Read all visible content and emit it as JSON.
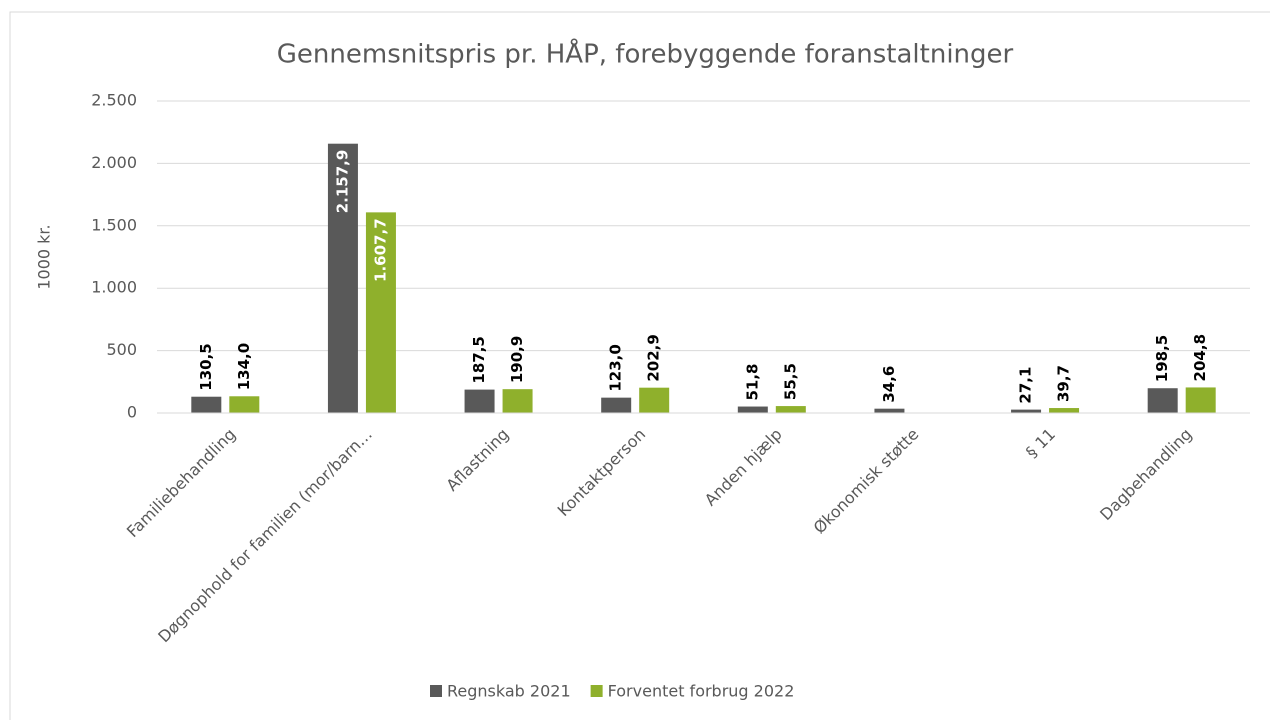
{
  "chart_data": {
    "type": "bar",
    "title": "Gennemsnitspris pr. HÅP, forebyggende foranstaltninger",
    "y_label": "1000 kr.",
    "categories": [
      "Familiebehandling",
      "Døgnophold for familien (mor/barn…",
      "Aflastning",
      "Kontaktperson",
      "Anden hjælp",
      "Økonomisk støtte",
      "§ 11",
      "Dagbehandling"
    ],
    "series": [
      {
        "name": "Regnskab 2021",
        "color": "#595959",
        "values": [
          130.5,
          2157.9,
          187.5,
          123.0,
          51.8,
          34.6,
          27.1,
          198.5
        ],
        "value_labels": [
          "130,5",
          "2.157,9",
          "187,5",
          "123,0",
          "51,8",
          "34,6",
          "27,1",
          "198,5"
        ]
      },
      {
        "name": "Forventet forbrug 2022",
        "color": "#8fb02c",
        "values": [
          134.0,
          1607.7,
          190.9,
          202.9,
          55.5,
          null,
          39.7,
          204.8
        ],
        "value_labels": [
          "134,0",
          "1.607,7",
          "190,9",
          "202,9",
          "55,5",
          null,
          "39,7",
          "204,8"
        ]
      }
    ],
    "ylim": [
      0,
      2500
    ],
    "yticks": [
      0,
      500,
      {
        "value": 1000,
        "label": "1.000"
      },
      {
        "value": 1500,
        "label": "1.500"
      },
      {
        "value": 2000,
        "label": "2.000"
      },
      {
        "value": 2500,
        "label": "2.500"
      }
    ],
    "grid": true,
    "legend": "bottom"
  }
}
